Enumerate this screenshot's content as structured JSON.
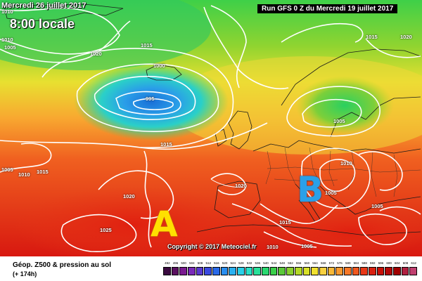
{
  "header": {
    "date_label": "Mercredi 26 juillet 2017",
    "hour_label": "8:00 locale",
    "run_label": "Run GFS 0 Z du Mercredi 19 juillet 2017"
  },
  "pressure_centers": {
    "high": "A",
    "low": "B"
  },
  "isobar_labels": [
    {
      "text": "1010",
      "id": "a"
    },
    {
      "text": "1010",
      "id": "b"
    },
    {
      "text": "1005",
      "id": "c"
    },
    {
      "text": "1020",
      "id": "d"
    },
    {
      "text": "1000",
      "id": "e"
    },
    {
      "text": "995",
      "id": "f"
    },
    {
      "text": "1015",
      "id": "g"
    },
    {
      "text": "1015",
      "id": "h"
    },
    {
      "text": "1020",
      "id": "i"
    },
    {
      "text": "1005",
      "id": "j"
    },
    {
      "text": "1015",
      "id": "k"
    },
    {
      "text": "1005",
      "id": "l"
    },
    {
      "text": "1010",
      "id": "m"
    },
    {
      "text": "1015",
      "id": "n"
    },
    {
      "text": "1020",
      "id": "o"
    },
    {
      "text": "1025",
      "id": "p"
    },
    {
      "text": "1020",
      "id": "q"
    },
    {
      "text": "1005",
      "id": "r"
    },
    {
      "text": "1010",
      "id": "s"
    },
    {
      "text": "1005",
      "id": "t"
    },
    {
      "text": "1015",
      "id": "u"
    },
    {
      "text": "1005",
      "id": "v"
    },
    {
      "text": "1010",
      "id": "w"
    },
    {
      "text": "1005",
      "id": "x"
    },
    {
      "text": "1010",
      "id": "y"
    }
  ],
  "copyright": "Copyright © 2017 Meteociel.fr",
  "legend": {
    "title": "Géop. Z500 & pression au sol",
    "subtitle": "(+ 174h)",
    "scale_values": [
      "492",
      "496",
      "500",
      "504",
      "508",
      "512",
      "516",
      "520",
      "524",
      "528",
      "532",
      "536",
      "540",
      "544",
      "548",
      "552",
      "556",
      "560",
      "564",
      "568",
      "572",
      "576",
      "580",
      "584",
      "588",
      "592",
      "596",
      "600",
      "604",
      "608",
      "612"
    ],
    "scale_colors": [
      "#3a0a40",
      "#5a1060",
      "#7a1a90",
      "#7a2ab8",
      "#5a3ad0",
      "#3a4ae0",
      "#2a6ae8",
      "#2a8ef0",
      "#2ab0f0",
      "#2ad0e8",
      "#2ae0c8",
      "#2ae09a",
      "#2ad870",
      "#3ad04a",
      "#5ac83a",
      "#8ad030",
      "#b4d828",
      "#d8e028",
      "#f0e030",
      "#f8d040",
      "#f8b838",
      "#f89830",
      "#f87828",
      "#f05820",
      "#e83818",
      "#d82010",
      "#c81008",
      "#b40808",
      "#a00000",
      "#b02040",
      "#c04070"
    ]
  },
  "colors": {
    "hi_letter": "#ffe000",
    "lo_letter": "#2aa0e8",
    "isobar": "#ffffff"
  }
}
